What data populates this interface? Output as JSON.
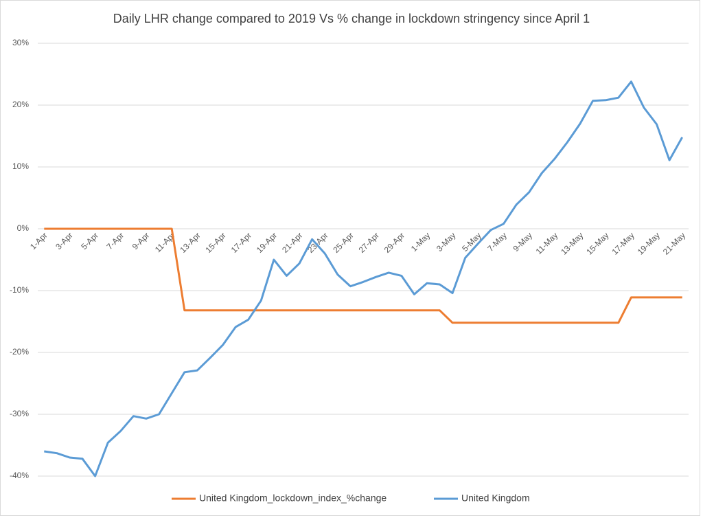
{
  "chart_data": {
    "type": "line",
    "title": "Daily LHR change compared to 2019 Vs % change in lockdown stringency since April 1",
    "categories": [
      "1-Apr",
      null,
      "3-Apr",
      null,
      "5-Apr",
      null,
      "7-Apr",
      null,
      "9-Apr",
      null,
      "11-Apr",
      null,
      "13-Apr",
      null,
      "15-Apr",
      null,
      "17-Apr",
      null,
      "19-Apr",
      null,
      "21-Apr",
      null,
      "23-Apr",
      null,
      "25-Apr",
      null,
      "27-Apr",
      null,
      "29-Apr",
      null,
      "1-May",
      null,
      "3-May",
      null,
      "5-May",
      null,
      "7-May",
      null,
      "9-May",
      null,
      "11-May",
      null,
      "13-May",
      null,
      "15-May",
      null,
      "17-May",
      null,
      "19-May",
      null,
      "21-May"
    ],
    "series": [
      {
        "name": "United Kingdom_lockdown_index_%change",
        "color": "#ed7d31",
        "values": [
          0,
          0,
          0,
          0,
          0,
          0,
          0,
          0,
          0,
          0,
          0,
          -13.2,
          -13.2,
          -13.2,
          -13.2,
          -13.2,
          -13.2,
          -13.2,
          -13.2,
          -13.2,
          -13.2,
          -13.2,
          -13.2,
          -13.2,
          -13.2,
          -13.2,
          -13.2,
          -13.2,
          -13.2,
          -13.2,
          -13.2,
          -13.2,
          -15.2,
          -15.2,
          -15.2,
          -15.2,
          -15.2,
          -15.2,
          -15.2,
          -15.2,
          -15.2,
          -15.2,
          -15.2,
          -15.2,
          -15.2,
          -15.2,
          -11.1,
          -11.1,
          -11.1,
          -11.1,
          -11.1
        ]
      },
      {
        "name": "United Kingdom",
        "color": "#5b9bd5",
        "values": [
          -36,
          -36.3,
          -37,
          -37.2,
          -40,
          -34.6,
          -32.7,
          -30.3,
          -30.7,
          -30,
          -26.6,
          -23.2,
          -22.9,
          -20.9,
          -18.8,
          -15.9,
          -14.7,
          -11.6,
          -5,
          -7.6,
          -5.6,
          -1.7,
          -4,
          -7.4,
          -9.3,
          -8.6,
          -7.8,
          -7.1,
          -7.6,
          -10.6,
          -8.8,
          -9,
          -10.4,
          -4.7,
          -2.4,
          -0.2,
          0.8,
          3.9,
          5.9,
          9,
          11.3,
          14,
          17,
          20.7,
          20.8,
          21.2,
          23.8,
          19.6,
          16.9,
          11.1,
          14.8
        ]
      }
    ],
    "ylim": [
      -40,
      30
    ],
    "yticks": [
      {
        "value": -40,
        "label": "-40%"
      },
      {
        "value": -30,
        "label": "-30%"
      },
      {
        "value": -20,
        "label": "-20%"
      },
      {
        "value": -10,
        "label": "-10%"
      },
      {
        "value": 0,
        "label": "0%"
      },
      {
        "value": 10,
        "label": "10%"
      },
      {
        "value": 20,
        "label": "20%"
      },
      {
        "value": 30,
        "label": "30%"
      }
    ],
    "grid": true,
    "legend": "bottom"
  }
}
